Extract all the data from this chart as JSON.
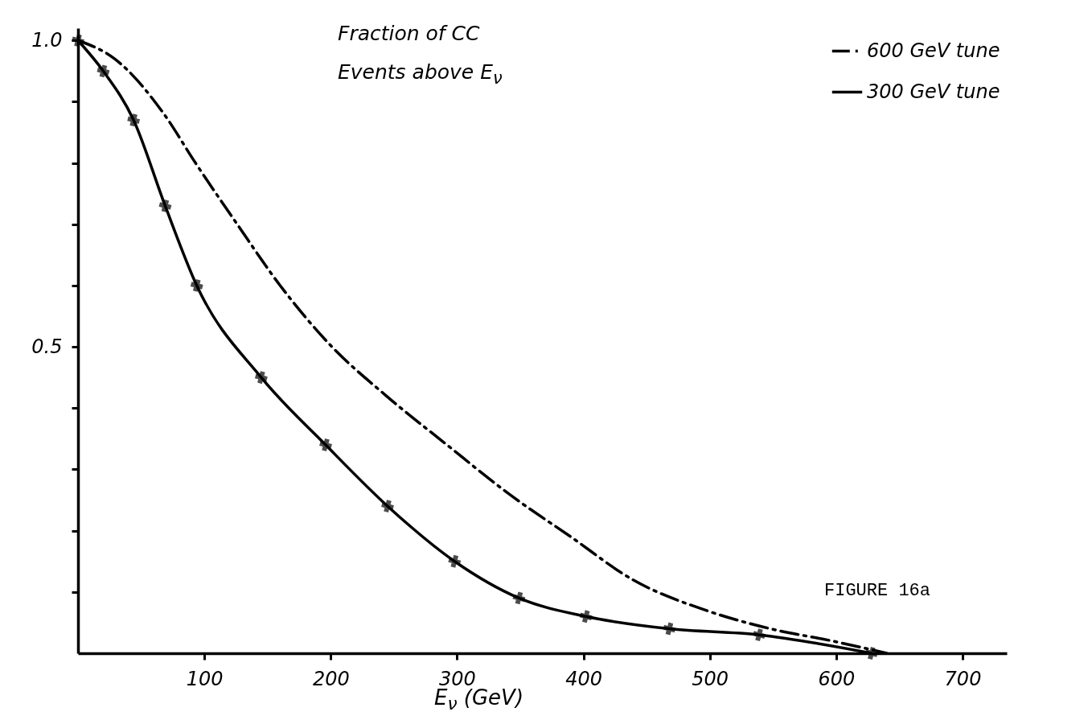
{
  "chart_data": {
    "type": "line",
    "title": "Fraction of CC Events above E$_{ν}$",
    "xlabel": "E$_{ν}$ (GeV)",
    "xlim": [
      0,
      735
    ],
    "xticks": [
      100,
      200,
      300,
      400,
      500,
      600,
      700
    ],
    "ylim": [
      0,
      1.02
    ],
    "yticks": [
      {
        "value": 0.1,
        "label": null
      },
      {
        "value": 0.2,
        "label": null
      },
      {
        "value": 0.3,
        "label": null
      },
      {
        "value": 0.4,
        "label": null
      },
      0.5,
      {
        "value": 0.6,
        "label": null
      },
      {
        "value": 0.7,
        "label": null
      },
      {
        "value": 0.8,
        "label": null
      },
      {
        "value": 0.9,
        "label": null
      },
      {
        "value": 1,
        "label": "1.0"
      }
    ],
    "grid": false,
    "legend": "top right",
    "annotations": [
      "FIGURE 16a"
    ],
    "series": [
      {
        "name": "600 GeV tune",
        "color": "#000000",
        "line_style": "dashed",
        "marker": "none",
        "x": [
          0,
          29,
          68,
          93,
          126,
          160,
          201,
          244,
          292,
          341,
          390,
          439,
          497,
          548,
          597,
          640
        ],
        "values": [
          1.0,
          0.97,
          0.88,
          0.8,
          0.7,
          0.6,
          0.5,
          0.42,
          0.34,
          0.26,
          0.19,
          0.12,
          0.07,
          0.04,
          0.02,
          0
        ]
      },
      {
        "name": "300 GeV tune",
        "color": "#000000",
        "line_style": "solid",
        "marker": "cross",
        "x": [
          0,
          20,
          44,
          69,
          94,
          145,
          196,
          245,
          298,
          349,
          402,
          468,
          539,
          628
        ],
        "values": [
          1.0,
          0.95,
          0.87,
          0.73,
          0.6,
          0.45,
          0.34,
          0.24,
          0.15,
          0.09,
          0.06,
          0.04,
          0.03,
          0
        ]
      }
    ]
  }
}
